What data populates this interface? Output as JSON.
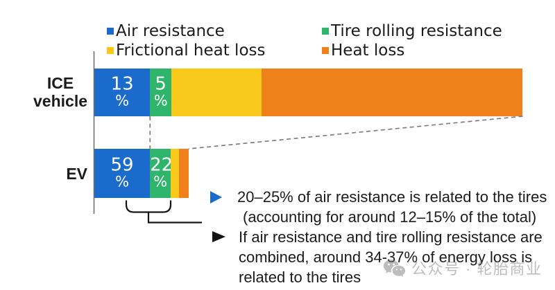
{
  "chart_data": {
    "type": "bar",
    "variant": "horizontal-stacked",
    "title": "",
    "xlabel": "",
    "ylabel": "",
    "axes": "single vertical baseline at left, no ticks, no gridlines",
    "legend_position": "top, two columns",
    "categories": [
      "ICE vehicle",
      "EV"
    ],
    "categories_display": [
      [
        "ICE",
        "vehicle"
      ],
      [
        "EV"
      ]
    ],
    "series": [
      {
        "name": "Air resistance",
        "color": "#1A6BCB",
        "values": [
          13,
          59
        ]
      },
      {
        "name": "Tire rolling resistance",
        "color": "#2FB56B",
        "values": [
          5,
          22
        ]
      },
      {
        "name": "Frictional heat loss",
        "color": "#F8C81B",
        "values": [
          21,
          9
        ]
      },
      {
        "name": "Heat loss",
        "color": "#F0801A",
        "values": [
          61,
          10
        ]
      }
    ],
    "units": "percent of energy loss per vehicle type",
    "bar_length_scale_relative_to_first": [
      1,
      0.22
    ],
    "value_labels_shown": [
      [
        "13 %",
        "5 %",
        "",
        ""
      ],
      [
        "59 %",
        "22 %",
        "",
        ""
      ]
    ],
    "value_label_suffix": "%",
    "labeled_segment_count": 2,
    "guides": {
      "vertical_dashed_between_bars": "aligns ICE 13% boundary with EV bar blue/green boundary",
      "diagonal_dashed": "connects right end of ICE bar bottom to right end of EV bar top",
      "bracket": "rounded bracket under EV blue+green segments with elbow connector pointing to notes"
    }
  },
  "annotations": {
    "items": [
      {
        "bullet": "right-triangle",
        "bullet_color": "#1A6BCB",
        "lines": [
          "20–25% of air resistance is related to the tires",
          "(accounting for around 12–15% of the total)"
        ]
      },
      {
        "bullet": "right-triangle",
        "bullet_color": "#141414",
        "lines": [
          "If air resistance and tire rolling resistance are",
          "combined, around 34-37% of energy loss is",
          "related to the tires"
        ]
      }
    ]
  },
  "watermark": {
    "icon": "wechat-icon",
    "text": "公众号 · 轮胎商业",
    "color": "#7e7e7e"
  },
  "colors": {
    "background": "#ffffff",
    "text": "#1b1b1d",
    "axis": "#6f6f6f",
    "dashed_guides": "#7d7d7d",
    "bracket": "#141414",
    "bar_value_text": "#ffffff"
  }
}
